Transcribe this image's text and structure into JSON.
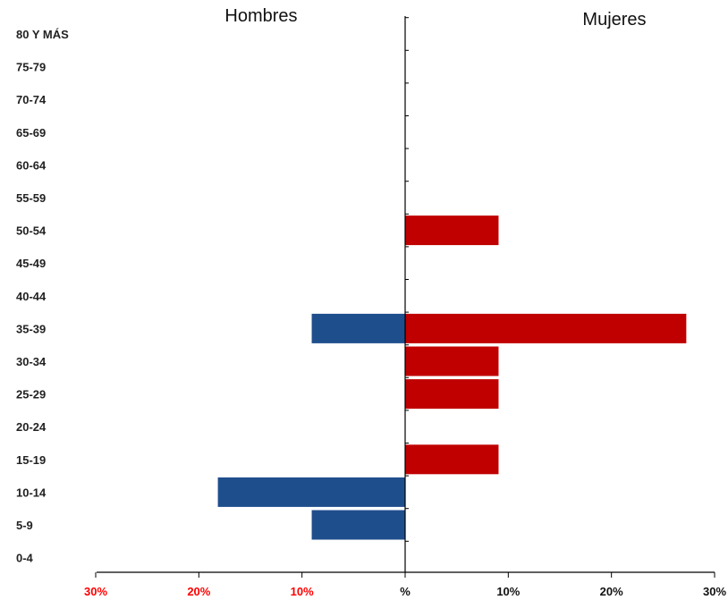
{
  "chart_data": {
    "type": "bar",
    "orientation": "horizontal-diverging",
    "left_group_label": "Hombres",
    "right_group_label": "Mujeres",
    "categories": [
      "80 Y MÁS",
      "75-79",
      "70-74",
      "65-69",
      "60-64",
      "55-59",
      "50-54",
      "45-49",
      "40-44",
      "35-39",
      "30-34",
      "25-29",
      "20-24",
      "15-19",
      "10-14",
      "5-9",
      "0-4"
    ],
    "series": [
      {
        "name": "Hombres",
        "side": "left",
        "color": "#1f4e8c",
        "values": [
          0,
          0,
          0,
          0,
          0,
          0,
          0,
          0,
          0,
          9.1,
          0,
          0,
          0,
          0,
          18.2,
          9.1,
          0
        ]
      },
      {
        "name": "Mujeres",
        "side": "right",
        "color": "#c00000",
        "values": [
          0,
          0,
          0,
          0,
          0,
          0,
          9.1,
          0,
          0,
          27.3,
          9.1,
          9.1,
          0,
          9.1,
          0,
          0,
          0
        ]
      }
    ],
    "xlim": [
      -30,
      30
    ],
    "xtick_labels": [
      {
        "value": -30,
        "label": "30%",
        "color": "#ff0000"
      },
      {
        "value": -20,
        "label": "20%",
        "color": "#ff0000"
      },
      {
        "value": -10,
        "label": "10%",
        "color": "#ff0000"
      },
      {
        "value": 0,
        "label": "%",
        "color": "#111111"
      },
      {
        "value": 10,
        "label": "10%",
        "color": "#111111"
      },
      {
        "value": 20,
        "label": "20%",
        "color": "#111111"
      },
      {
        "value": 30,
        "label": "30%",
        "color": "#111111"
      }
    ],
    "grid": false,
    "legend": "none"
  }
}
